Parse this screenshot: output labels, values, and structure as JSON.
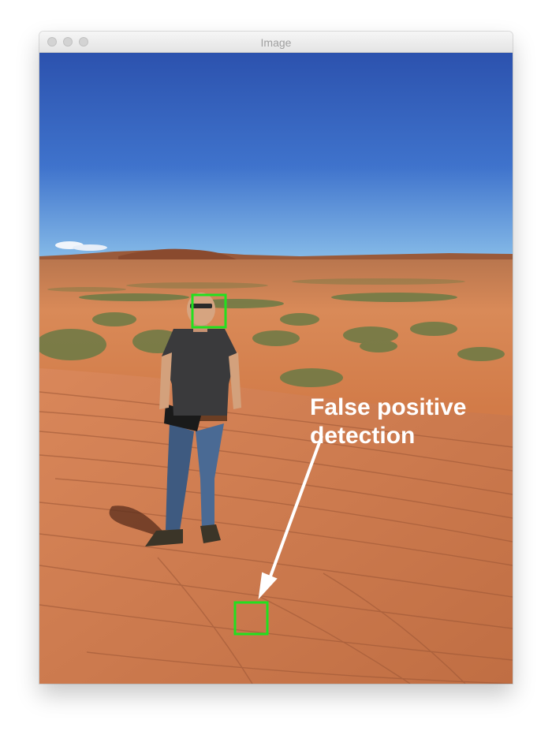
{
  "window": {
    "title": "Image"
  },
  "annotation": {
    "line1": "False positive",
    "line2": "detection"
  },
  "colors": {
    "detection_box": "#22e01f",
    "sky_top": "#2f56b3",
    "sky_horizon": "#7fb4e6",
    "sandstone": "#c8784a",
    "annotation_text": "#ffffff"
  },
  "icons": [
    "close-button",
    "minimize-button",
    "zoom-button",
    "arrow"
  ]
}
